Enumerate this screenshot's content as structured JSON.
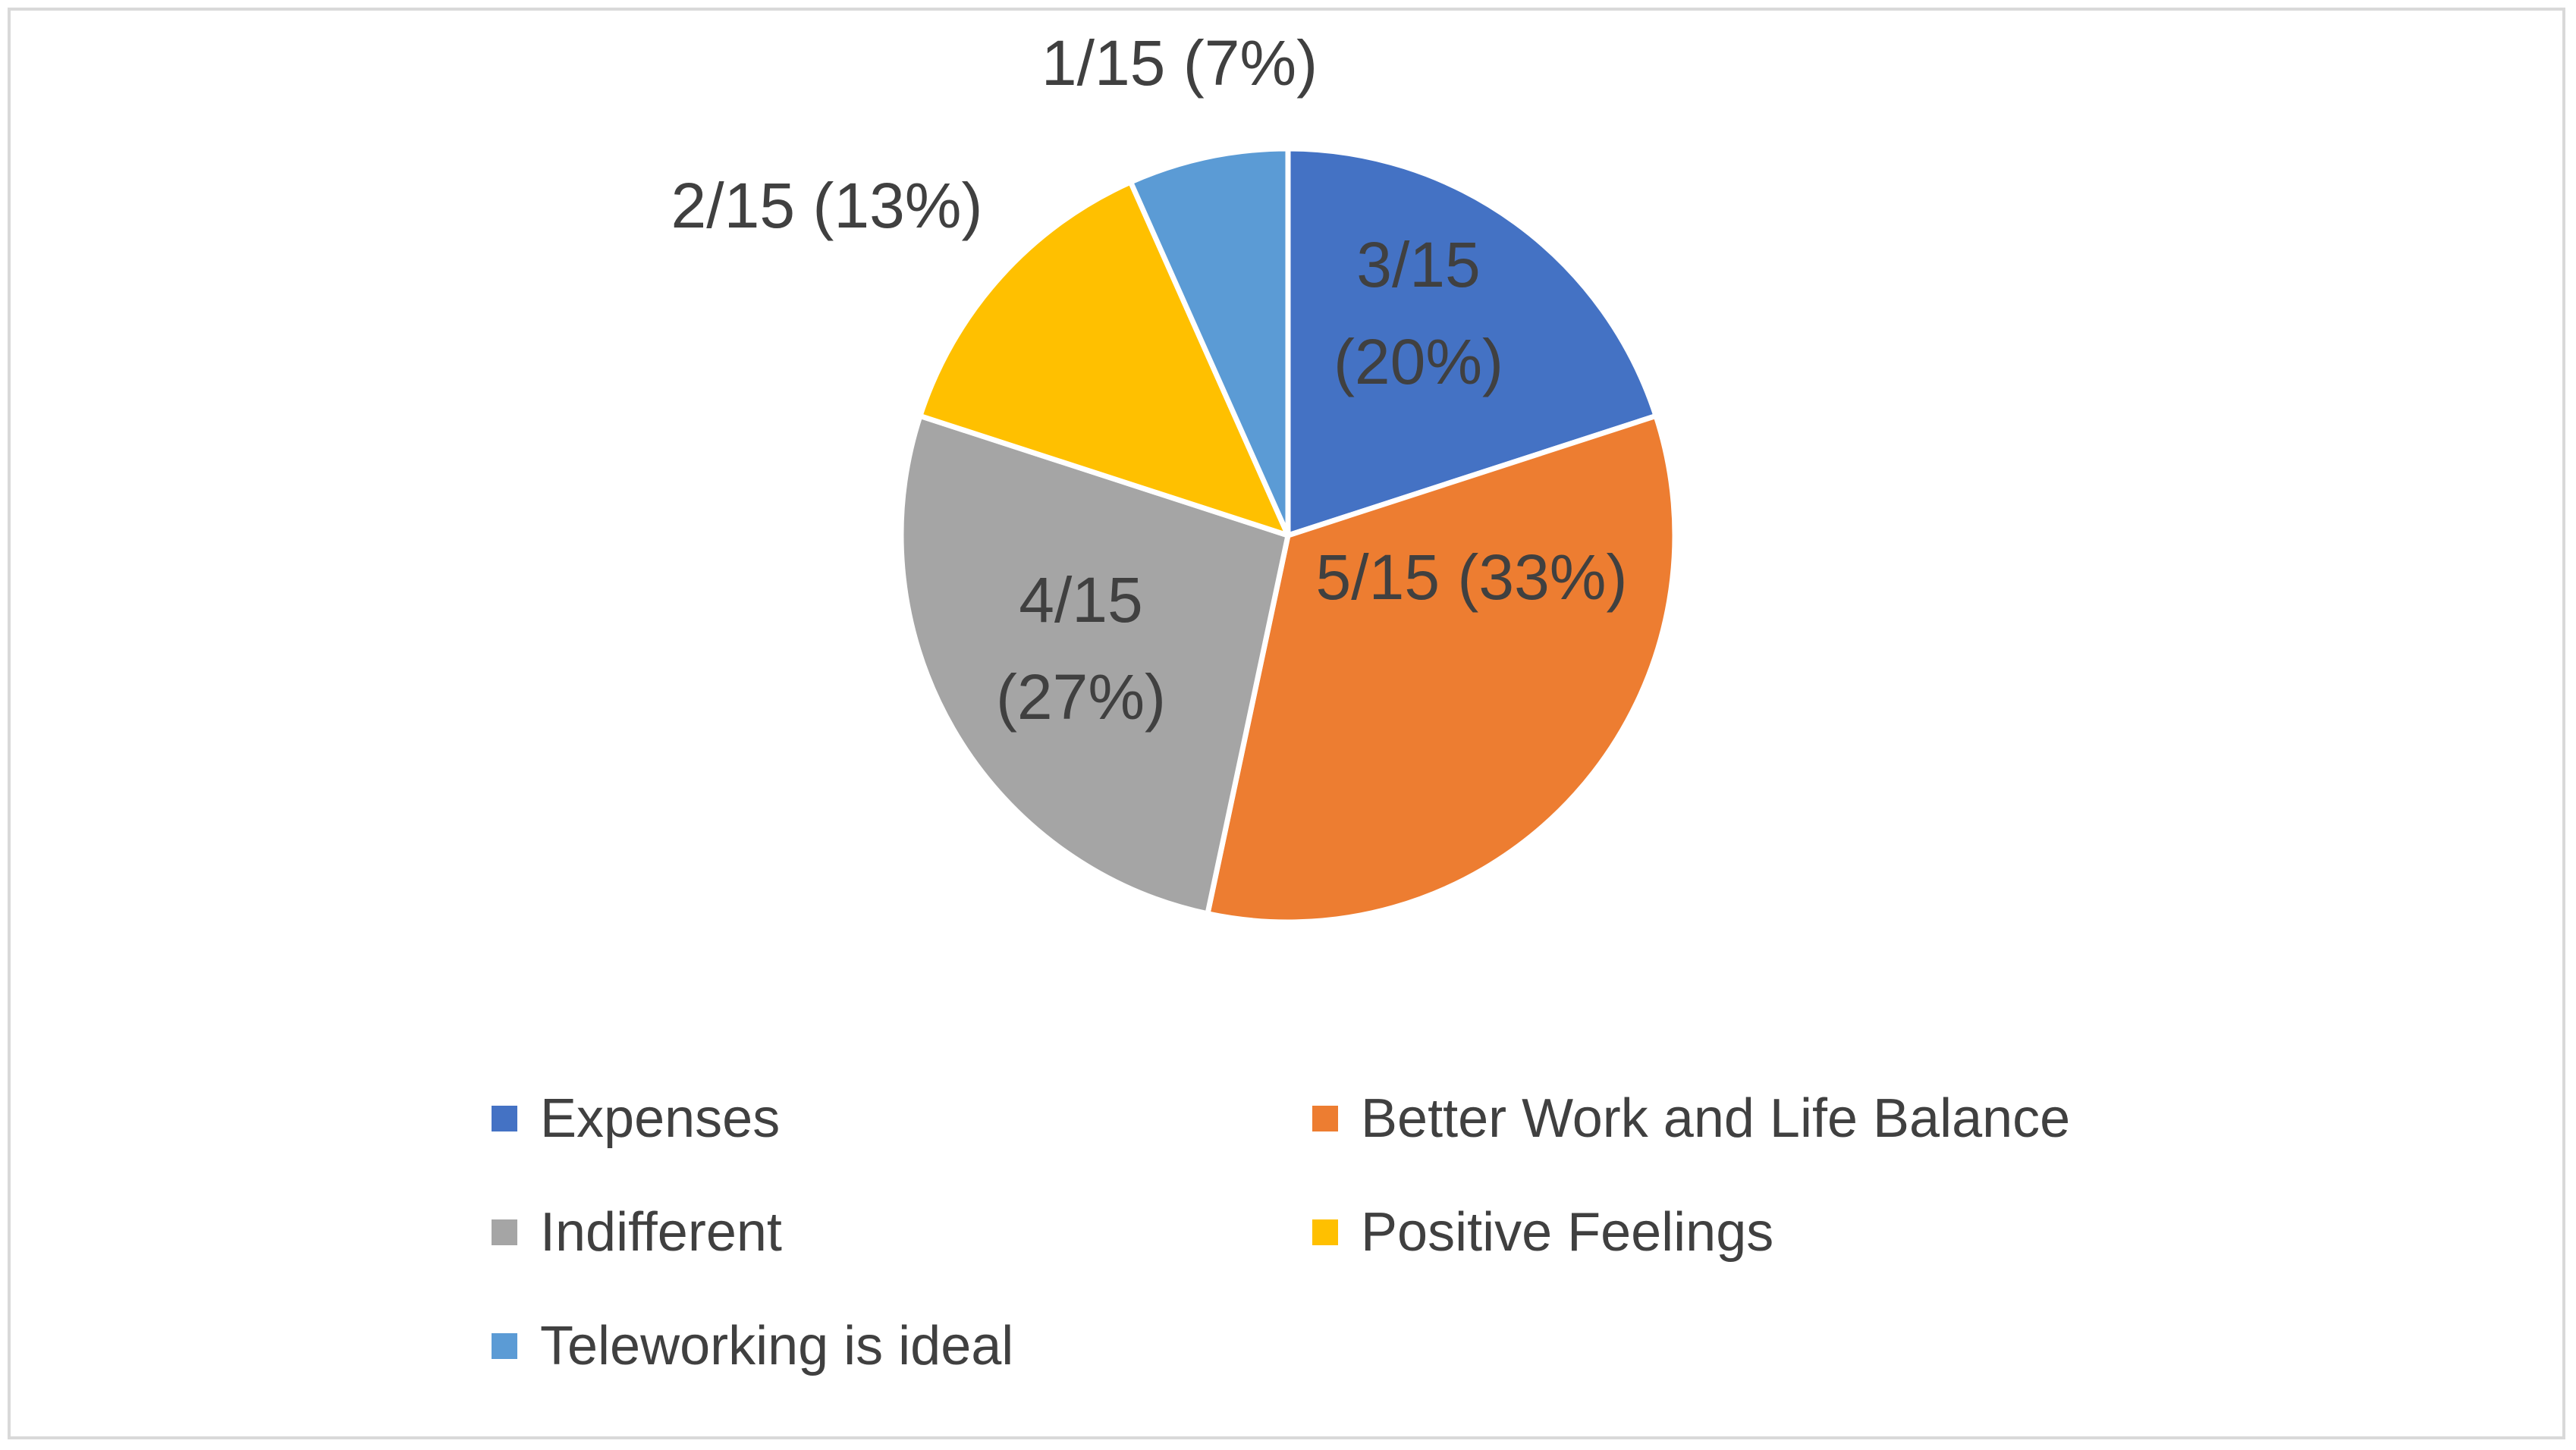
{
  "chart_data": {
    "type": "pie",
    "title": "",
    "slices": [
      {
        "name": "Expenses",
        "count": 3,
        "total": 15,
        "value": 20,
        "label_line1": "3/15",
        "label_line2": "(20%)",
        "color": "#4472C4"
      },
      {
        "name": "Better Work and Life Balance",
        "count": 5,
        "total": 15,
        "value": 33,
        "label_line1": "5/15 (33%)",
        "label_line2": "",
        "color": "#ED7D31"
      },
      {
        "name": "Indifferent",
        "count": 4,
        "total": 15,
        "value": 27,
        "label_line1": "4/15",
        "label_line2": "(27%)",
        "color": "#A5A5A5"
      },
      {
        "name": "Positive Feelings",
        "count": 2,
        "total": 15,
        "value": 13,
        "label_line1": "2/15 (13%)",
        "label_line2": "",
        "color": "#FFC000"
      },
      {
        "name": "Teleworking is ideal",
        "count": 1,
        "total": 15,
        "value": 7,
        "label_line1": "1/15 (7%)",
        "label_line2": "",
        "color": "#5B9BD5"
      }
    ],
    "start_angle": "12 o'clock",
    "direction": "clockwise",
    "legend": {
      "position": "bottom",
      "items": [
        "Expenses",
        "Better Work and Life Balance",
        "Indifferent",
        "Positive Feelings",
        "Teleworking is ideal"
      ]
    }
  }
}
